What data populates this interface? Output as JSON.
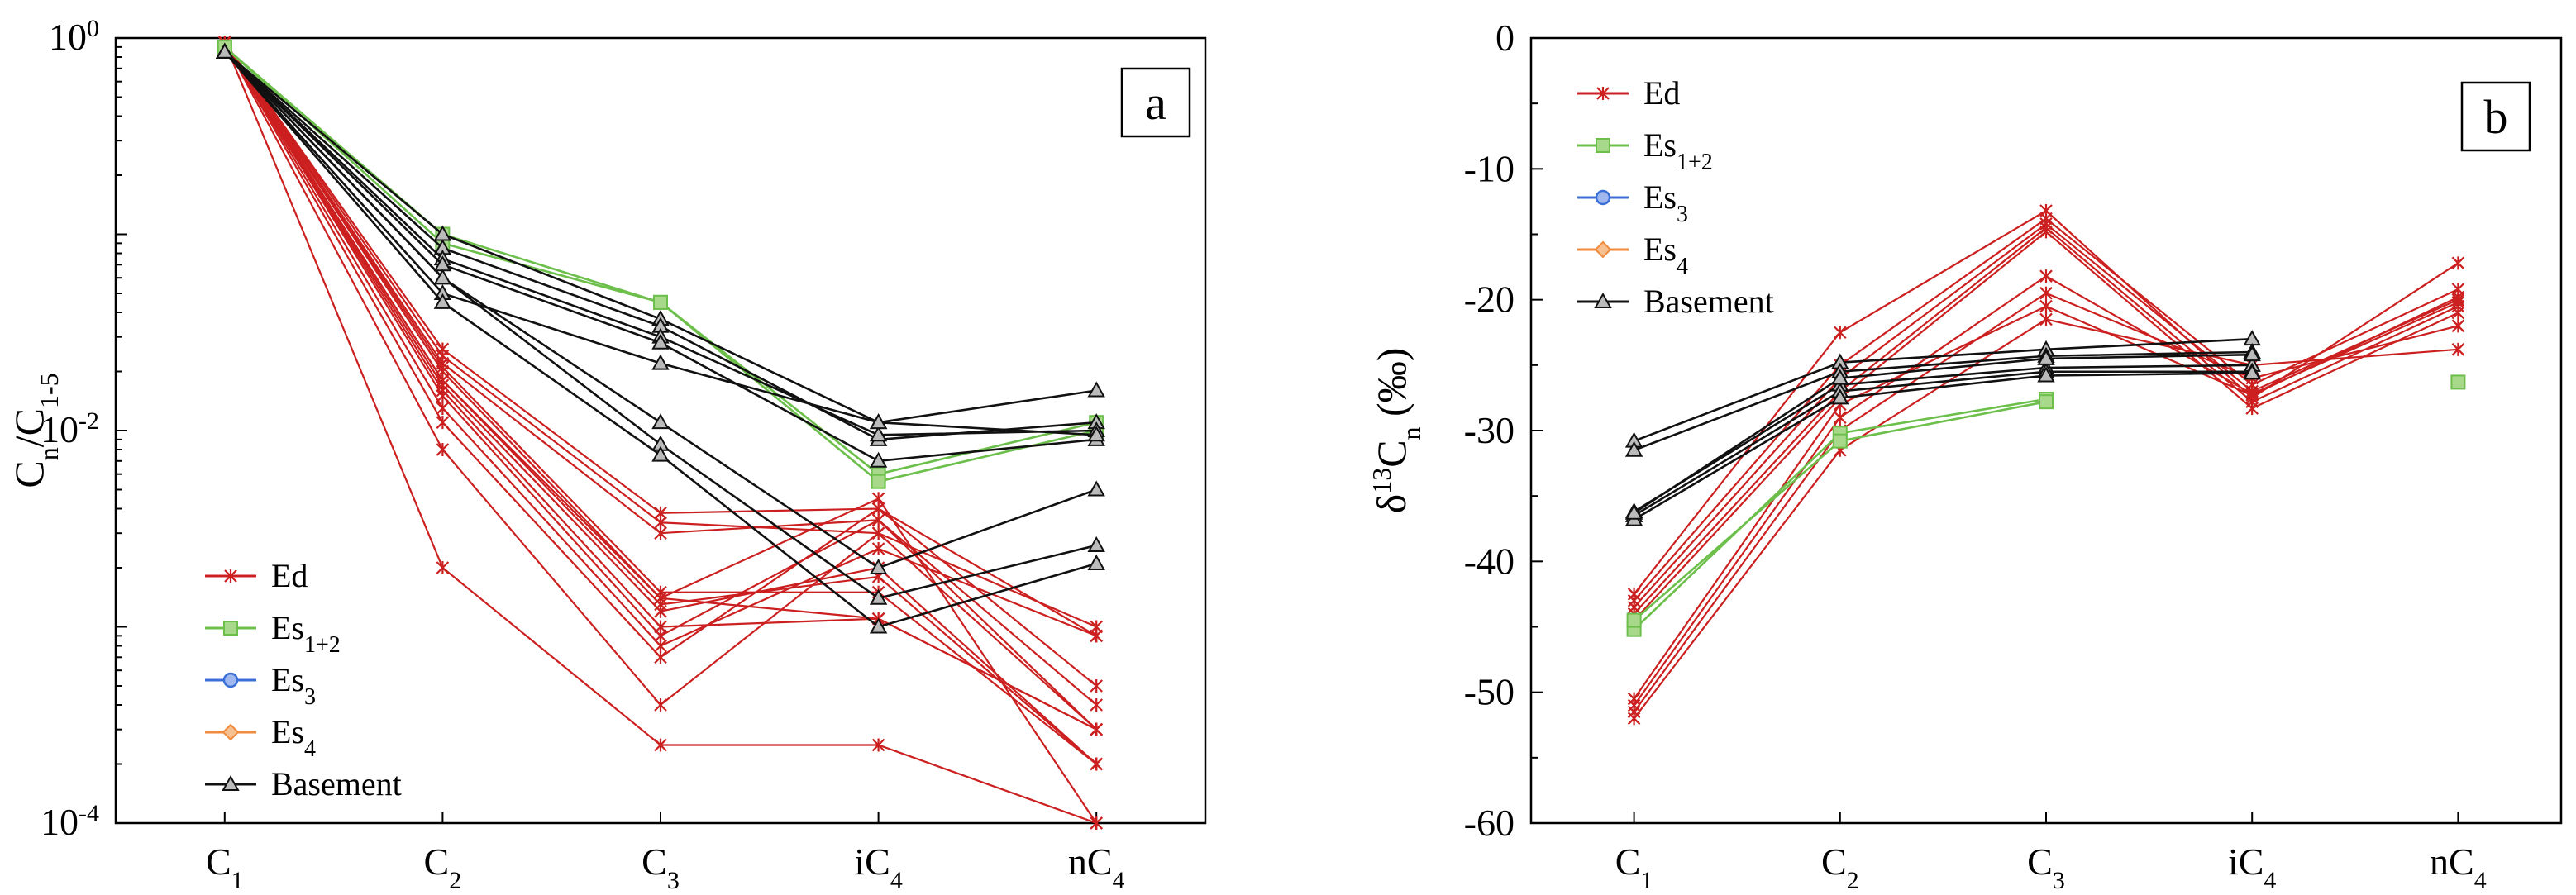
{
  "chart_data": [
    {
      "id": "a",
      "type": "line",
      "panel_label": "a",
      "x_labels": [
        {
          "base": "C",
          "sub": "1"
        },
        {
          "base": "C",
          "sub": "2"
        },
        {
          "base": "C",
          "sub": "3"
        },
        {
          "base": "iC",
          "sub": "4"
        },
        {
          "base": "nC",
          "sub": "4"
        }
      ],
      "ylabel": {
        "base": "C",
        "sub1": "n",
        "mid": "/C",
        "sub2": "1-5"
      },
      "yscale": "log",
      "ylim": [
        0.0001,
        1
      ],
      "y_ticks": [
        {
          "value": 1,
          "base": "10",
          "exp": "0"
        },
        {
          "value": 0.01,
          "base": "10",
          "exp": "-2"
        },
        {
          "value": 0.0001,
          "base": "10",
          "exp": "-4"
        }
      ],
      "grid": false,
      "legend_position": "bottom-left",
      "legend": [
        {
          "group": "Ed",
          "label": "Ed",
          "sub": ""
        },
        {
          "group": "Es12",
          "label": "Es",
          "sub": "1+2"
        },
        {
          "group": "Es3",
          "label": "Es",
          "sub": "3"
        },
        {
          "group": "Es4",
          "label": "Es",
          "sub": "4"
        },
        {
          "group": "Basement",
          "label": "Basement",
          "sub": ""
        }
      ],
      "series": [
        {
          "group": "Ed",
          "values": [
            0.95,
            0.002,
            0.00025,
            0.00025,
            0.0001
          ]
        },
        {
          "group": "Ed",
          "values": [
            0.95,
            0.008,
            0.0004,
            0.003,
            0.0003
          ]
        },
        {
          "group": "Ed",
          "values": [
            0.95,
            0.011,
            0.0007,
            0.004,
            0.0005
          ]
        },
        {
          "group": "Ed",
          "values": [
            0.95,
            0.013,
            0.0008,
            0.0025,
            0.0009
          ]
        },
        {
          "group": "Ed",
          "values": [
            0.95,
            0.015,
            0.0009,
            0.0035,
            0.0004
          ]
        },
        {
          "group": "Ed",
          "values": [
            0.95,
            0.016,
            0.001,
            0.0011,
            0.0003
          ]
        },
        {
          "group": "Ed",
          "values": [
            0.95,
            0.017,
            0.0012,
            0.002,
            0.0002
          ]
        },
        {
          "group": "Ed",
          "values": [
            0.95,
            0.018,
            0.0014,
            0.0045,
            0.0001
          ]
        },
        {
          "group": "Ed",
          "values": [
            0.95,
            0.02,
            0.0014,
            0.0011,
            0.0003
          ]
        },
        {
          "group": "Ed",
          "values": [
            0.95,
            0.021,
            0.0015,
            0.0015,
            0.0002
          ]
        },
        {
          "group": "Ed",
          "values": [
            0.95,
            0.022,
            0.003,
            0.0035,
            0.0003
          ]
        },
        {
          "group": "Ed",
          "values": [
            0.95,
            0.024,
            0.0034,
            0.003,
            0.001
          ]
        },
        {
          "group": "Ed",
          "values": [
            0.95,
            0.026,
            0.0038,
            0.004,
            0.0009
          ]
        },
        {
          "group": "Ed",
          "values": [
            0.95,
            0.018,
            0.0013,
            0.0018,
            0.0002
          ]
        },
        {
          "group": "Es12",
          "values": [
            0.9,
            0.1,
            0.045,
            0.006,
            0.011
          ]
        },
        {
          "group": "Es12",
          "values": [
            0.9,
            0.09,
            0.045,
            0.0055,
            0.01
          ]
        },
        {
          "group": "Basement",
          "values": [
            0.85,
            0.1,
            0.037,
            0.011,
            0.016
          ]
        },
        {
          "group": "Basement",
          "values": [
            0.85,
            0.085,
            0.034,
            0.009,
            0.011
          ]
        },
        {
          "group": "Basement",
          "values": [
            0.85,
            0.075,
            0.03,
            0.0095,
            0.01
          ]
        },
        {
          "group": "Basement",
          "values": [
            0.85,
            0.07,
            0.028,
            0.007,
            0.009
          ]
        },
        {
          "group": "Basement",
          "values": [
            0.85,
            0.05,
            0.022,
            0.011,
            0.0095
          ]
        },
        {
          "group": "Basement",
          "values": [
            0.85,
            0.06,
            0.011,
            0.002,
            0.005
          ]
        },
        {
          "group": "Basement",
          "values": [
            0.85,
            0.06,
            0.0085,
            0.0014,
            0.0026
          ]
        },
        {
          "group": "Basement",
          "values": [
            0.85,
            0.045,
            0.0075,
            0.001,
            0.0021
          ]
        }
      ]
    },
    {
      "id": "b",
      "type": "line",
      "panel_label": "b",
      "x_labels": [
        {
          "base": "C",
          "sub": "1"
        },
        {
          "base": "C",
          "sub": "2"
        },
        {
          "base": "C",
          "sub": "3"
        },
        {
          "base": "iC",
          "sub": "4"
        },
        {
          "base": "nC",
          "sub": "4"
        }
      ],
      "ylabel": {
        "prefix": "δ",
        "sup": "13",
        "base": "C",
        "sub": "n",
        "unit": "(‰)"
      },
      "yscale": "linear",
      "ylim": [
        -60,
        0
      ],
      "y_ticks": [
        {
          "value": 0,
          "label": "0"
        },
        {
          "value": -10,
          "label": "-10"
        },
        {
          "value": -20,
          "label": "-20"
        },
        {
          "value": -30,
          "label": "-30"
        },
        {
          "value": -40,
          "label": "-40"
        },
        {
          "value": -50,
          "label": "-50"
        },
        {
          "value": -60,
          "label": "-60"
        }
      ],
      "grid": false,
      "legend_position": "top-left",
      "legend": [
        {
          "group": "Ed",
          "label": "Ed",
          "sub": ""
        },
        {
          "group": "Es12",
          "label": "Es",
          "sub": "1+2"
        },
        {
          "group": "Es3",
          "label": "Es",
          "sub": "3"
        },
        {
          "group": "Es4",
          "label": "Es",
          "sub": "4"
        },
        {
          "group": "Basement",
          "label": "Basement",
          "sub": ""
        }
      ],
      "series": [
        {
          "group": "Ed",
          "values": [
            -42.5,
            -22.5,
            -13.2,
            -27.5,
            -17.2
          ]
        },
        {
          "group": "Ed",
          "values": [
            -43,
            -25,
            -13.8,
            -26.5,
            -19.2
          ]
        },
        {
          "group": "Ed",
          "values": [
            -43.5,
            -26,
            -14.2,
            -27,
            -20
          ]
        },
        {
          "group": "Ed",
          "values": [
            -44,
            -27,
            -14.5,
            -27.8,
            -20.5
          ]
        },
        {
          "group": "Ed",
          "values": [
            -44.5,
            -27.5,
            -14.8,
            -28.3,
            -21
          ]
        },
        {
          "group": "Ed",
          "values": [
            -51,
            -29,
            -18.2,
            -27.2,
            -20.2
          ]
        },
        {
          "group": "Ed",
          "values": [
            -51.5,
            -30,
            -19.5,
            -26,
            -22
          ]
        },
        {
          "group": "Ed",
          "values": [
            -52,
            -31.5,
            -21.5,
            -25,
            -23.8
          ]
        },
        {
          "group": "Ed",
          "values": [
            -50.5,
            -28,
            -20.5,
            -27.3,
            -19.8
          ]
        },
        {
          "group": "Es12",
          "values": [
            -45.2,
            -30.2,
            -27.6,
            null,
            -26.3
          ]
        },
        {
          "group": "Es12",
          "values": [
            -44.5,
            -30.8,
            -27.8,
            null,
            null
          ]
        },
        {
          "group": "Basement",
          "values": [
            -30.8,
            -24.8,
            -23.8,
            -23,
            null
          ]
        },
        {
          "group": "Basement",
          "values": [
            -31.5,
            -25.5,
            -24.3,
            -24,
            null
          ]
        },
        {
          "group": "Basement",
          "values": [
            -36.2,
            -26.5,
            -25.2,
            -25,
            null
          ]
        },
        {
          "group": "Basement",
          "values": [
            -36.5,
            -27,
            -25.5,
            -25.5,
            null
          ]
        },
        {
          "group": "Basement",
          "values": [
            -36.8,
            -27.5,
            -25.8,
            -25.6,
            null
          ]
        },
        {
          "group": "Basement",
          "values": [
            -36.3,
            -26,
            -24.5,
            -24.2,
            null
          ]
        }
      ]
    }
  ],
  "styles": {
    "Ed": {
      "color": "#cc1f1f",
      "marker": "x"
    },
    "Es12": {
      "color": "#6cbf4a",
      "marker": "square",
      "fill": "#a8d98a"
    },
    "Es3": {
      "color": "#3a6fd8",
      "marker": "circle",
      "fill": "#a0b8ee"
    },
    "Es4": {
      "color": "#f08a3c",
      "marker": "diamond",
      "fill": "#f6c090"
    },
    "Basement": {
      "color": "#111111",
      "marker": "triangle",
      "fill": "#bbbbbb"
    }
  }
}
